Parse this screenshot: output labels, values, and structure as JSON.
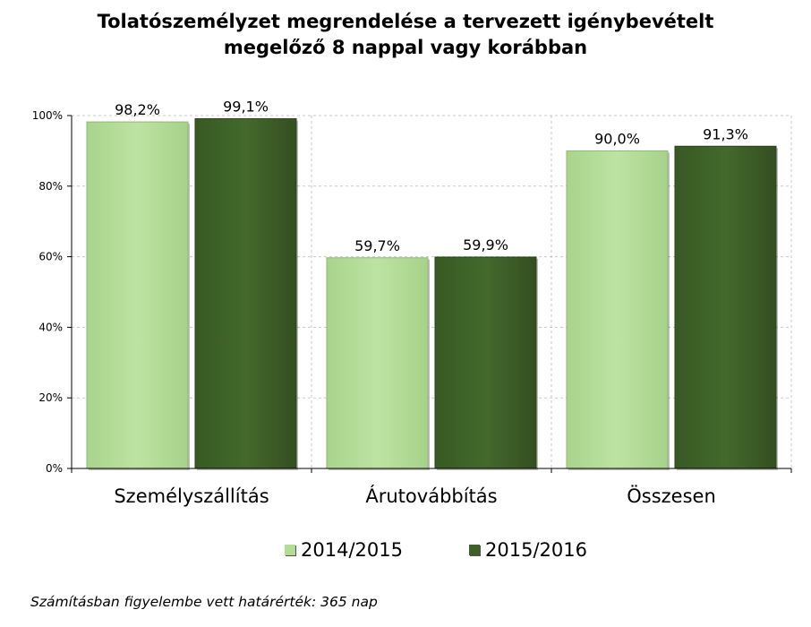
{
  "title_lines": [
    "Tolatószemélyzet megrendelése a tervezett igénybevételt",
    "megelőző 8 nappal vagy korábban"
  ],
  "note": "Számításban figyelembe vett határérték: 365 nap",
  "colors": {
    "series1": "#b3dc97",
    "series2": "#3e6129"
  },
  "chart_data": {
    "type": "bar",
    "title": "Tolatószemélyzet megrendelése a tervezett igénybevételt megelőző 8 nappal vagy korábban",
    "categories": [
      "Személyszállítás",
      "Árutovábbítás",
      "Összesen"
    ],
    "series": [
      {
        "name": "2014/2015",
        "values": [
          98.2,
          59.7,
          90.0
        ],
        "labels": [
          "98,2%",
          "59,7%",
          "90,0%"
        ]
      },
      {
        "name": "2015/2016",
        "values": [
          99.1,
          59.9,
          91.3
        ],
        "labels": [
          "99,1%",
          "59,9%",
          "91,3%"
        ]
      }
    ],
    "ylim": [
      0,
      100
    ],
    "yticks": [
      0,
      20,
      40,
      60,
      80,
      100
    ],
    "ytick_labels": [
      "0%",
      "20%",
      "40%",
      "60%",
      "80%",
      "100%"
    ],
    "grid": true,
    "legend": "bottom"
  }
}
